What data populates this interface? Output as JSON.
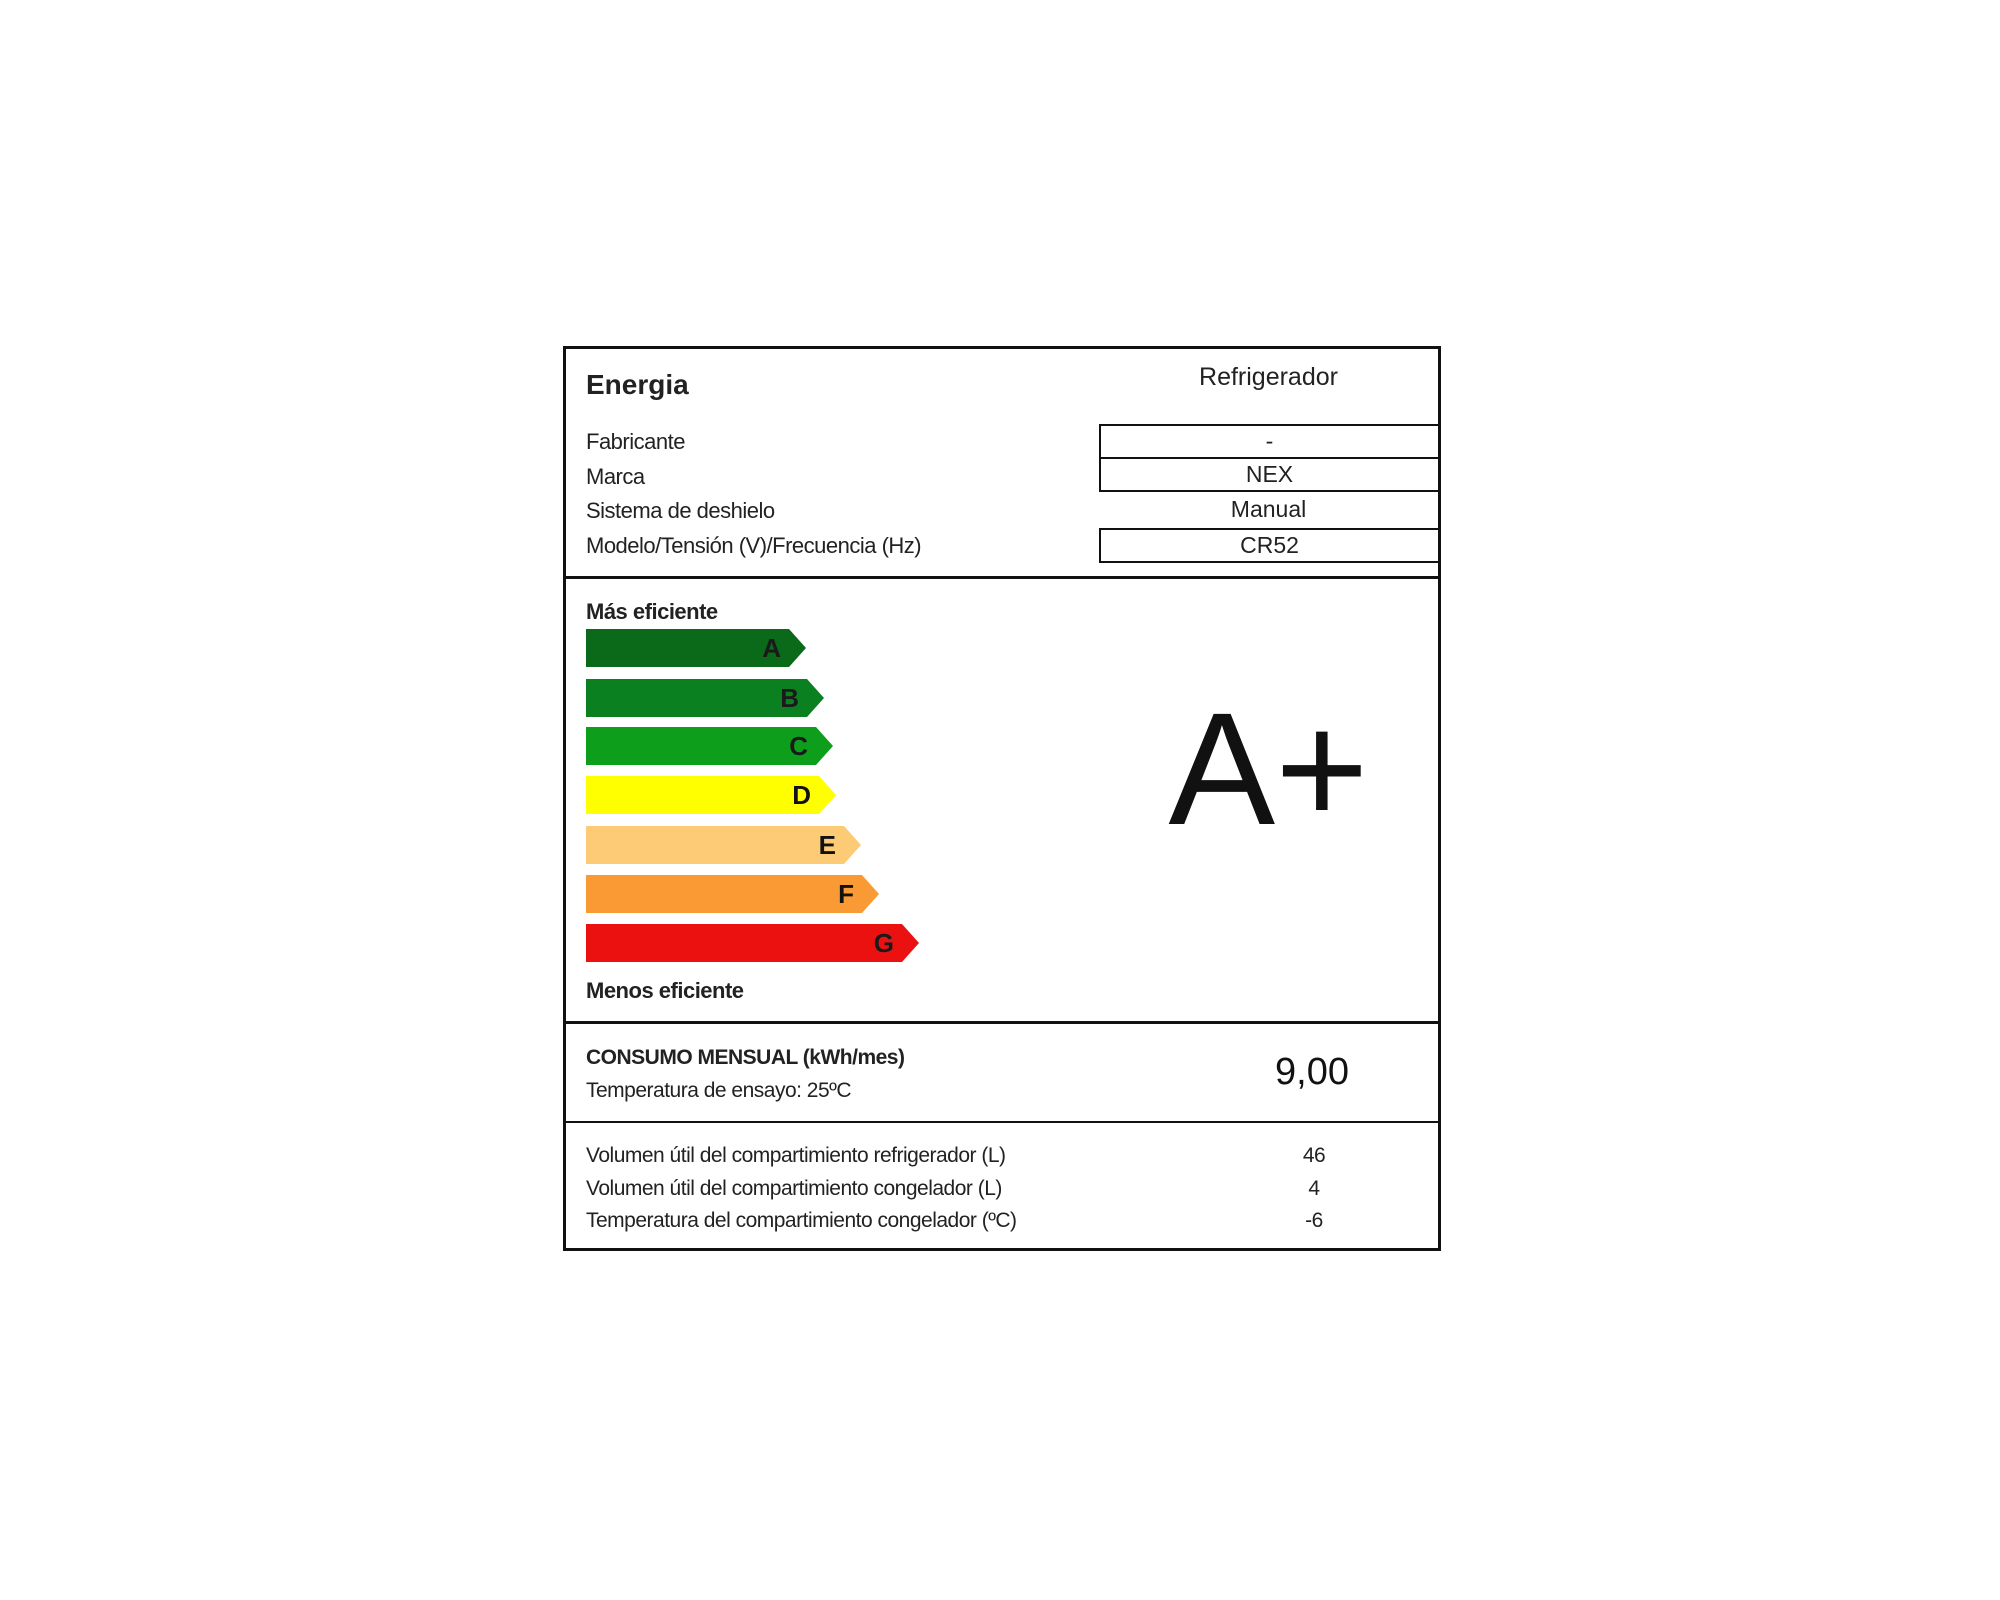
{
  "header": {
    "title": "Energia",
    "appliance": "Refrigerador"
  },
  "info": [
    {
      "label": "Fabricante",
      "value": "-",
      "boxed": true
    },
    {
      "label": "Marca",
      "value": "NEX",
      "boxed": true
    },
    {
      "label": "Sistema de deshielo",
      "value": "Manual",
      "boxed": false
    },
    {
      "label": "Modelo/Tensión (V)/Frecuencia (Hz)",
      "value": "CR52",
      "boxed": true
    }
  ],
  "scale": {
    "top_label": "Más eficiente",
    "bottom_label": "Menos eficiente",
    "classes": [
      {
        "letter": "A",
        "color": "#0a6a1a"
      },
      {
        "letter": "B",
        "color": "#0b8020"
      },
      {
        "letter": "C",
        "color": "#0d9e1c"
      },
      {
        "letter": "D",
        "color": "#ffff00"
      },
      {
        "letter": "E",
        "color": "#fdcb76"
      },
      {
        "letter": "F",
        "color": "#f99a35"
      },
      {
        "letter": "G",
        "color": "#ec1111"
      }
    ],
    "rating": "A+"
  },
  "consumption": {
    "title": "CONSUMO MENSUAL (kWh/mes)",
    "test_temp": "Temperatura de ensayo: 25ºC",
    "value": "9,00"
  },
  "specs": [
    {
      "label": "Volumen útil del compartimiento refrigerador (L)",
      "value": "46"
    },
    {
      "label": "Volumen útil del compartimiento congelador (L)",
      "value": "4"
    },
    {
      "label": "Temperatura del compartimiento congelador (ºC)",
      "value": "-6"
    }
  ]
}
